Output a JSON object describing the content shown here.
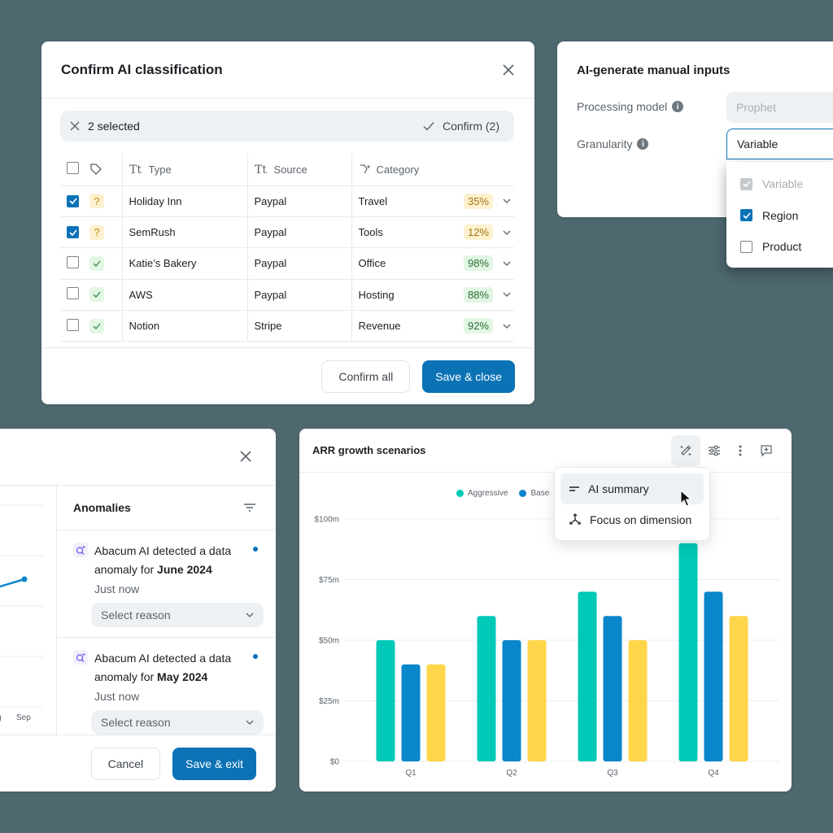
{
  "classification_dialog": {
    "title": "Confirm AI classification",
    "selection_bar": {
      "count_label": "2 selected",
      "confirm_label": "Confirm (2)"
    },
    "columns": [
      "Type",
      "Source",
      "Category"
    ],
    "rows": [
      {
        "checked": true,
        "status": "uncertain",
        "type": "Holiday Inn",
        "source": "Paypal",
        "category": "Travel",
        "confidence": "35%"
      },
      {
        "checked": true,
        "status": "uncertain",
        "type": "SemRush",
        "source": "Paypal",
        "category": "Tools",
        "confidence": "12%"
      },
      {
        "checked": false,
        "status": "confident",
        "type": "Katie’s Bakery",
        "source": "Paypal",
        "category": "Office",
        "confidence": "98%"
      },
      {
        "checked": false,
        "status": "confident",
        "type": "AWS",
        "source": "Paypal",
        "category": "Hosting",
        "confidence": "88%"
      },
      {
        "checked": false,
        "status": "confident",
        "type": "Notion",
        "source": "Stripe",
        "category": "Revenue",
        "confidence": "92%"
      }
    ],
    "buttons": {
      "confirm_all": "Confirm all",
      "save_close": "Save & close"
    }
  },
  "manual_inputs": {
    "title": "AI-generate manual inputs",
    "processing_model": {
      "label": "Processing model",
      "value": "Prophet"
    },
    "granularity": {
      "label": "Granularity",
      "value": "Variable"
    },
    "options": [
      {
        "label": "Variable",
        "state": "disabled-checked"
      },
      {
        "label": "Region",
        "state": "checked"
      },
      {
        "label": "Product",
        "state": "unchecked"
      }
    ]
  },
  "anomalies_dialog": {
    "line_chart": {
      "x_labels": [
        "g",
        "Sep"
      ]
    },
    "panel_title": "Anomalies",
    "items": [
      {
        "prefix": "Abacum AI detected a data anomaly for ",
        "period": "June 2024",
        "time": "Just now",
        "select_placeholder": "Select reason"
      },
      {
        "prefix": "Abacum AI detected a data anomaly for ",
        "period": "May 2024",
        "time": "Just now",
        "select_placeholder": "Select reason"
      }
    ],
    "buttons": {
      "cancel": "Cancel",
      "save_exit": "Save & exit"
    }
  },
  "arr_card": {
    "title": "ARR growth scenarios",
    "menu": {
      "items": [
        "AI summary",
        "Focus on dimension"
      ]
    },
    "colors": {
      "Aggressive": "#00c9b7",
      "Base": "#0a86cb",
      "Conservative": "#ffd54a"
    }
  },
  "chart_data": {
    "type": "bar",
    "title": "ARR growth scenarios",
    "categories": [
      "Q1",
      "Q2",
      "Q3",
      "Q4"
    ],
    "series": [
      {
        "name": "Aggressive",
        "values": [
          50,
          60,
          70,
          90
        ]
      },
      {
        "name": "Base",
        "values": [
          40,
          50,
          60,
          70
        ]
      },
      {
        "name": "",
        "values": [
          40,
          50,
          50,
          60
        ]
      }
    ],
    "y_ticks": [
      "$0",
      "$25m",
      "$50m",
      "$75m",
      "$100m"
    ],
    "xlabel": "",
    "ylabel": "",
    "ylim": [
      0,
      100
    ],
    "grid": true,
    "legend_position": "top",
    "legend_visible": [
      "Aggressive",
      "Base"
    ]
  }
}
